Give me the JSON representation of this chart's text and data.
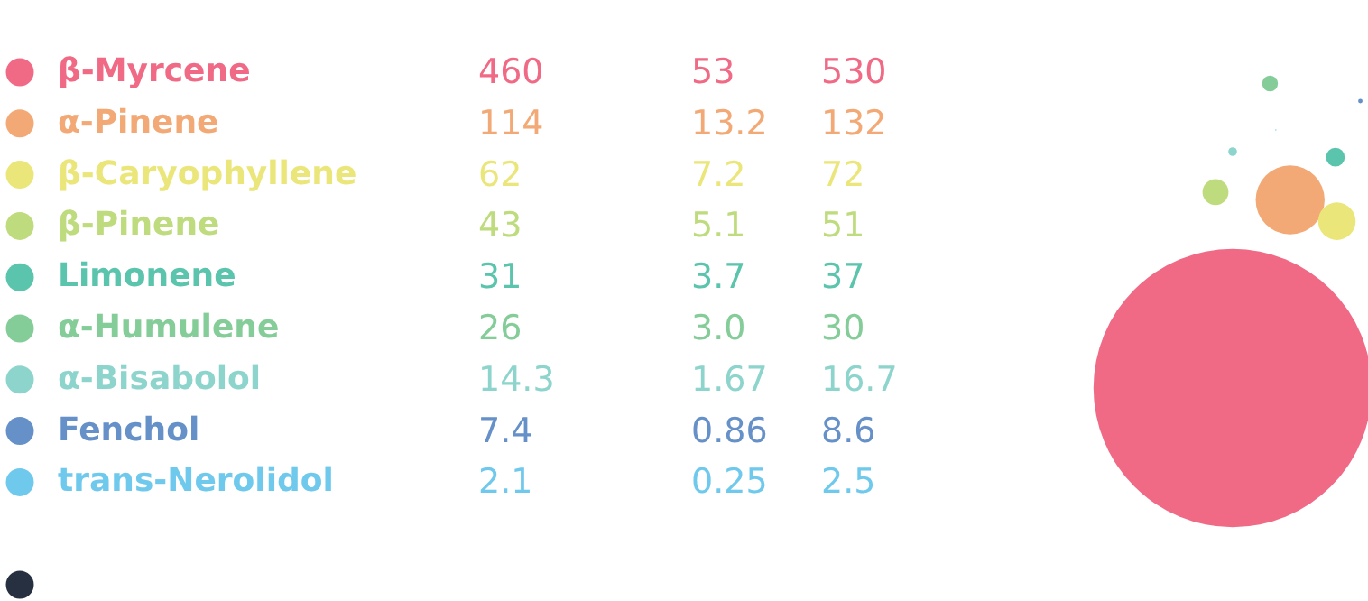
{
  "chart_data": {
    "type": "other",
    "categories": [
      "β-Myrcene",
      "α-Pinene",
      "β-Caryophyllene",
      "β-Pinene",
      "Limonene",
      "α-Humulene",
      "α-Bisabolol",
      "Fenchol",
      "trans-Nerolidol",
      null
    ],
    "colors": [
      "#f06a86",
      "#f2a975",
      "#ebe67a",
      "#bedc7d",
      "#5bc4ad",
      "#84cc98",
      "#8dd5cc",
      "#6690c8",
      "#6fc9ec",
      "#263040"
    ],
    "series": [
      {
        "values": [
          460,
          114,
          62,
          43,
          31,
          26,
          14.3,
          7.4,
          2.1,
          null
        ],
        "value_labels": [
          "460",
          "114",
          "62",
          "43",
          "31",
          "26",
          "14.3",
          "7.4",
          "2.1",
          null
        ]
      },
      {
        "values": [
          53,
          13.2,
          7.2,
          5.1,
          3.7,
          3.0,
          1.67,
          0.86,
          0.25,
          null
        ],
        "value_labels": [
          "53",
          "13.2",
          "7.2",
          "5.1",
          "3.7",
          "3.0",
          "1.67",
          "0.86",
          "0.25",
          null
        ]
      },
      {
        "values": [
          530,
          132,
          72,
          51,
          37,
          30,
          16.7,
          8.6,
          2.5,
          null
        ],
        "value_labels": [
          "530",
          "132",
          "72",
          "51",
          "37",
          "30",
          "16.7",
          "8.6",
          "2.5",
          null
        ]
      }
    ]
  }
}
